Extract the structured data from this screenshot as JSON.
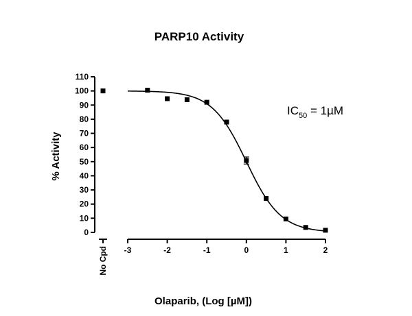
{
  "chart_data": {
    "type": "scatter",
    "title": "PARP10 Activity",
    "xlabel": "Olaparib, (Log [µM])",
    "ylabel": "% Activity",
    "annotation": {
      "main": "IC",
      "sub": "50",
      "rest": " = 1µM"
    },
    "xlim": [
      -3,
      2
    ],
    "ylim": [
      0,
      110
    ],
    "x_ticks": [
      -3,
      -2,
      -1,
      0,
      1,
      2
    ],
    "y_ticks": [
      0,
      10,
      20,
      30,
      40,
      50,
      60,
      70,
      80,
      90,
      100,
      110
    ],
    "control": {
      "label": "No Cpd",
      "value": 100
    },
    "series": [
      {
        "x": [
          -2.5,
          -2.0,
          -1.5,
          -1.0,
          -0.5,
          0.0,
          0.5,
          1.0,
          1.5,
          2.0
        ],
        "y": [
          100.5,
          94.5,
          93.8,
          92.0,
          78.0,
          50.8,
          24.0,
          9.5,
          3.5,
          1.5
        ],
        "error": [
          0,
          0,
          0,
          0,
          0,
          2.5,
          0,
          0,
          0,
          0
        ]
      }
    ],
    "fit": {
      "type": "sigmoidal",
      "top": 100,
      "bottom": 0,
      "log_ic50": 0,
      "hill_slope": 1
    },
    "grid": false,
    "legend": "none"
  }
}
